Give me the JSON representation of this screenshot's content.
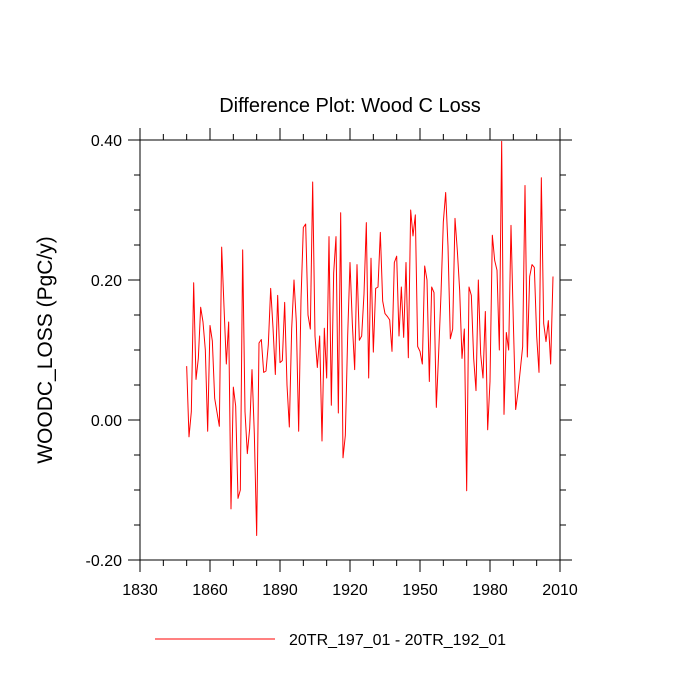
{
  "chart_data": {
    "type": "line",
    "title": "Difference Plot: Wood C Loss",
    "ylabel": "WOODC_LOSS  (PgC/y)",
    "xlabel": "",
    "xlim": [
      1830,
      2010
    ],
    "ylim": [
      -0.2,
      0.4
    ],
    "xticks": [
      1830,
      1860,
      1890,
      1920,
      1950,
      1980,
      2010
    ],
    "xtick_labels": [
      "1830",
      "1860",
      "1890",
      "1920",
      "1950",
      "1980",
      "2010"
    ],
    "yticks": [
      -0.2,
      0.0,
      0.2,
      0.4
    ],
    "ytick_labels": [
      "-0.20",
      "0.00",
      "0.20",
      "0.40"
    ],
    "grid": false,
    "legend_position": "bottom-center",
    "series": [
      {
        "name": "20TR_197_01 - 20TR_192_01",
        "color": "#ff0000",
        "x_start": 1850,
        "x_step": 1,
        "values": [
          0.077,
          -0.024,
          0.012,
          0.196,
          0.058,
          0.088,
          0.161,
          0.14,
          0.1,
          -0.016,
          0.135,
          0.113,
          0.031,
          0.011,
          -0.009,
          0.247,
          0.162,
          0.08,
          0.14,
          -0.127,
          0.047,
          0.02,
          -0.112,
          -0.1,
          0.243,
          0.012,
          -0.048,
          -0.012,
          0.072,
          -0.02,
          -0.165,
          0.11,
          0.115,
          0.068,
          0.07,
          0.108,
          0.188,
          0.132,
          0.065,
          0.178,
          0.082,
          0.085,
          0.168,
          0.05,
          -0.01,
          0.13,
          0.2,
          0.14,
          -0.016,
          0.172,
          0.275,
          0.28,
          0.15,
          0.13,
          0.34,
          0.12,
          0.075,
          0.12,
          -0.03,
          0.131,
          0.06,
          0.262,
          0.021,
          0.21,
          0.262,
          0.01,
          0.296,
          -0.054,
          -0.022,
          0.12,
          0.225,
          0.138,
          0.072,
          0.222,
          0.114,
          0.12,
          0.18,
          0.282,
          0.06,
          0.231,
          0.097,
          0.188,
          0.19,
          0.268,
          0.17,
          0.152,
          0.148,
          0.143,
          0.098,
          0.225,
          0.234,
          0.12,
          0.19,
          0.118,
          0.225,
          0.089,
          0.3,
          0.263,
          0.293,
          0.105,
          0.098,
          0.08,
          0.22,
          0.2,
          0.055,
          0.19,
          0.182,
          0.018,
          0.096,
          0.18,
          0.283,
          0.325,
          0.248,
          0.116,
          0.13,
          0.288,
          0.242,
          0.185,
          0.088,
          0.13,
          -0.101,
          0.19,
          0.178,
          0.088,
          0.042,
          0.2,
          0.094,
          0.06,
          0.155,
          -0.014,
          0.055,
          0.264,
          0.228,
          0.214,
          0.1,
          0.398,
          0.008,
          0.125,
          0.1,
          0.278,
          0.14,
          0.015,
          0.04,
          0.072,
          0.105,
          0.335,
          0.09,
          0.205,
          0.222,
          0.218,
          0.12,
          0.068,
          0.346,
          0.138,
          0.112,
          0.142,
          0.08,
          0.205
        ]
      }
    ]
  }
}
